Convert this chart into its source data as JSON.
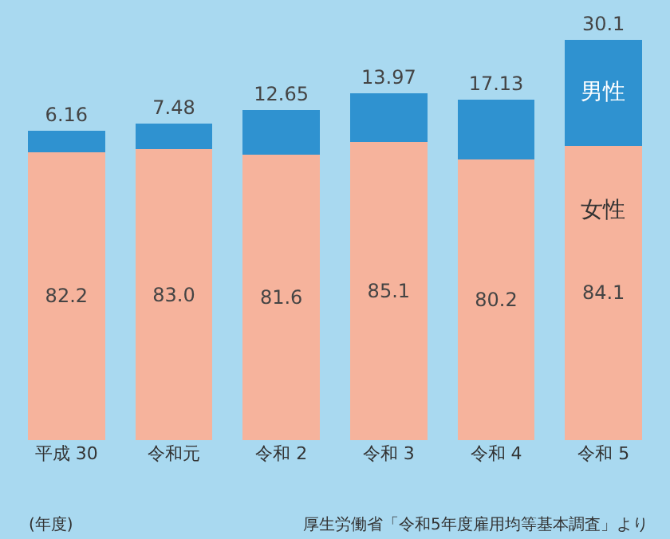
{
  "chart_data": {
    "type": "bar",
    "stacked": true,
    "categories": [
      "平成 30",
      "令和元",
      "令和 2",
      "令和 3",
      "令和 4",
      "令和 5"
    ],
    "series": [
      {
        "name": "女性",
        "color": "#f6b39c",
        "values": [
          82.2,
          83.0,
          81.6,
          85.1,
          80.2,
          84.1
        ],
        "value_labels": [
          "82.2",
          "83.0",
          "81.6",
          "85.1",
          "80.2",
          "84.1"
        ]
      },
      {
        "name": "男性",
        "color": "#2f92d0",
        "values": [
          6.16,
          7.48,
          12.65,
          13.97,
          17.13,
          30.1
        ],
        "value_labels": [
          "6.16",
          "7.48",
          "12.65",
          "13.97",
          "17.13",
          "30.1"
        ]
      }
    ],
    "tick_labels": "x",
    "grid": false,
    "legend": false,
    "annotations": [
      "(年度)",
      "厚生労働省「令和5年度雇用均等基本調査」より"
    ]
  }
}
